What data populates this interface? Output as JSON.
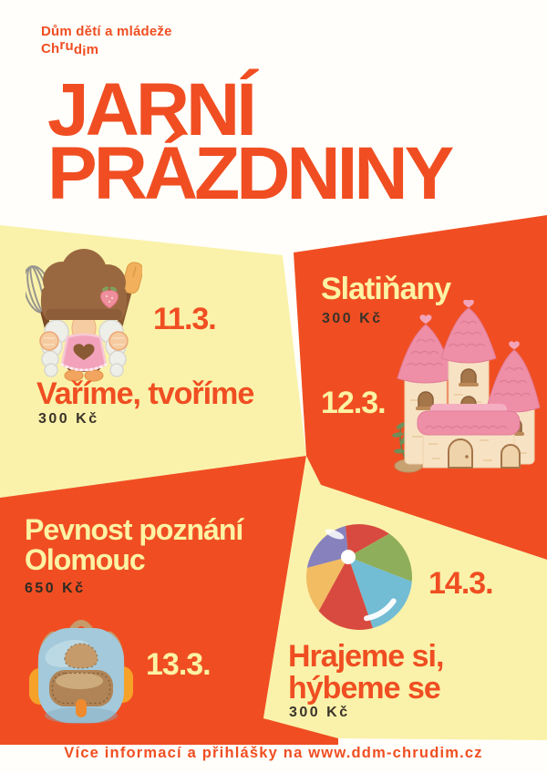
{
  "colors": {
    "orange": "#F04E22",
    "yellow": "#FAF2AA",
    "yellowtext": "#FCF3A4",
    "darktext": "#3A332A",
    "paper": "#FFFEFA"
  },
  "header": {
    "org_line1": "Dům dětí a mládeže",
    "org_line2": "Chrudim",
    "title_line1": "JARNÍ",
    "title_line2": "PRÁZDNINY"
  },
  "events": [
    {
      "date": "11.3.",
      "title": "Vaříme, tvoříme",
      "price": "300 Kč",
      "illustration": "gnome-chef"
    },
    {
      "date": "12.3.",
      "title": "Slatiňany",
      "price": "300 Kč",
      "illustration": "castle"
    },
    {
      "date": "13.3.",
      "title_lines": [
        "Pevnost poznání",
        "Olomouc"
      ],
      "price": "650 Kč",
      "illustration": "backpack"
    },
    {
      "date": "14.3.",
      "title_lines": [
        "Hrajeme si,",
        "hýbeme se"
      ],
      "price": "300 Kč",
      "illustration": "beach-ball"
    }
  ],
  "footer": {
    "text": "Více informací a přihlášky na www.ddm-chrudim.cz"
  }
}
